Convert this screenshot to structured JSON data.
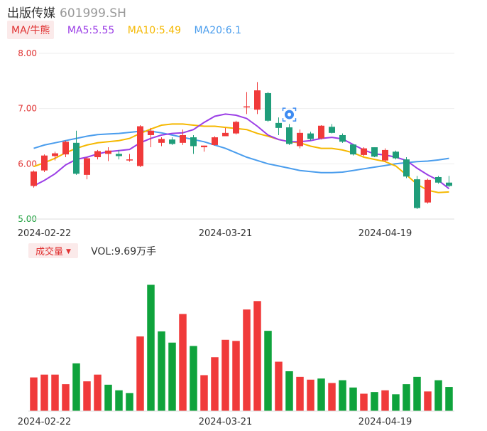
{
  "header": {
    "name": "出版传媒",
    "code": "601999.SH"
  },
  "ma_legend": {
    "button": "MA/牛熊",
    "items": [
      {
        "label": "MA5:5.55",
        "color": "#9b3ee6"
      },
      {
        "label": "MA10:5.49",
        "color": "#f5b800"
      },
      {
        "label": "MA20:6.1",
        "color": "#4a9ded"
      }
    ]
  },
  "volume_legend": {
    "button": "成交量",
    "value": "VOL:9.69万手"
  },
  "colors": {
    "up": "#f03a3a",
    "down": "#0fa33c",
    "down_candle": "#1f9d7a"
  },
  "chart_data": [
    {
      "type": "candlestick",
      "y_ticks": [
        "8.00",
        "7.00",
        "6.00",
        "5.00"
      ],
      "ylim": [
        5.0,
        8.0
      ],
      "x_ticks": [
        {
          "label": "2024-02-22",
          "index": 1
        },
        {
          "label": "2024-03-21",
          "index": 18
        },
        {
          "label": "2024-04-19",
          "index": 33
        }
      ],
      "candles": [
        {
          "o": 5.6,
          "h": 5.88,
          "l": 5.57,
          "c": 5.86
        },
        {
          "o": 5.88,
          "h": 6.17,
          "l": 5.85,
          "c": 6.15
        },
        {
          "o": 6.14,
          "h": 6.22,
          "l": 6.06,
          "c": 6.19
        },
        {
          "o": 6.17,
          "h": 6.42,
          "l": 6.12,
          "c": 6.4
        },
        {
          "o": 6.38,
          "h": 6.6,
          "l": 5.8,
          "c": 5.82
        },
        {
          "o": 5.8,
          "h": 6.12,
          "l": 5.72,
          "c": 6.1
        },
        {
          "o": 6.12,
          "h": 6.25,
          "l": 6.08,
          "c": 6.23
        },
        {
          "o": 6.18,
          "h": 6.3,
          "l": 6.05,
          "c": 6.24
        },
        {
          "o": 6.18,
          "h": 6.25,
          "l": 6.08,
          "c": 6.14
        },
        {
          "o": 6.06,
          "h": 6.18,
          "l": 6.04,
          "c": 6.08
        },
        {
          "o": 5.96,
          "h": 6.7,
          "l": 5.94,
          "c": 6.68
        },
        {
          "o": 6.52,
          "h": 6.65,
          "l": 6.3,
          "c": 6.6
        },
        {
          "o": 6.38,
          "h": 6.48,
          "l": 6.32,
          "c": 6.45
        },
        {
          "o": 6.44,
          "h": 6.48,
          "l": 6.34,
          "c": 6.36
        },
        {
          "o": 6.38,
          "h": 6.62,
          "l": 6.34,
          "c": 6.52
        },
        {
          "o": 6.48,
          "h": 6.52,
          "l": 6.18,
          "c": 6.32
        },
        {
          "o": 6.3,
          "h": 6.33,
          "l": 6.22,
          "c": 6.33
        },
        {
          "o": 6.34,
          "h": 6.5,
          "l": 6.33,
          "c": 6.48
        },
        {
          "o": 6.5,
          "h": 6.65,
          "l": 6.5,
          "c": 6.56
        },
        {
          "o": 6.55,
          "h": 6.78,
          "l": 6.53,
          "c": 6.76
        },
        {
          "o": 7.04,
          "h": 7.3,
          "l": 6.9,
          "c": 7.04
        },
        {
          "o": 6.98,
          "h": 7.48,
          "l": 6.9,
          "c": 7.33
        },
        {
          "o": 7.28,
          "h": 7.3,
          "l": 6.76,
          "c": 6.78
        },
        {
          "o": 6.74,
          "h": 6.84,
          "l": 6.52,
          "c": 6.65
        },
        {
          "o": 6.66,
          "h": 6.72,
          "l": 6.34,
          "c": 6.36
        },
        {
          "o": 6.32,
          "h": 6.62,
          "l": 6.28,
          "c": 6.56
        },
        {
          "o": 6.55,
          "h": 6.58,
          "l": 6.42,
          "c": 6.45
        },
        {
          "o": 6.46,
          "h": 6.7,
          "l": 6.44,
          "c": 6.69
        },
        {
          "o": 6.67,
          "h": 6.72,
          "l": 6.55,
          "c": 6.56
        },
        {
          "o": 6.52,
          "h": 6.55,
          "l": 6.38,
          "c": 6.4
        },
        {
          "o": 6.35,
          "h": 6.36,
          "l": 6.15,
          "c": 6.17
        },
        {
          "o": 6.16,
          "h": 6.3,
          "l": 6.14,
          "c": 6.28
        },
        {
          "o": 6.3,
          "h": 6.3,
          "l": 6.12,
          "c": 6.13
        },
        {
          "o": 6.06,
          "h": 6.28,
          "l": 6.03,
          "c": 6.25
        },
        {
          "o": 6.22,
          "h": 6.24,
          "l": 6.08,
          "c": 6.1
        },
        {
          "o": 6.08,
          "h": 6.12,
          "l": 5.74,
          "c": 5.77
        },
        {
          "o": 5.72,
          "h": 5.78,
          "l": 5.18,
          "c": 5.2
        },
        {
          "o": 5.3,
          "h": 5.73,
          "l": 5.28,
          "c": 5.71
        },
        {
          "o": 5.76,
          "h": 5.78,
          "l": 5.64,
          "c": 5.66
        },
        {
          "o": 5.66,
          "h": 5.78,
          "l": 5.58,
          "c": 5.6
        }
      ],
      "ma5": [
        5.6,
        5.7,
        5.82,
        5.98,
        6.08,
        6.12,
        6.18,
        6.22,
        6.24,
        6.26,
        6.38,
        6.46,
        6.52,
        6.55,
        6.56,
        6.62,
        6.75,
        6.86,
        6.9,
        6.88,
        6.82,
        6.68,
        6.52,
        6.44,
        6.4,
        6.4,
        6.42,
        6.46,
        6.48,
        6.45,
        6.35,
        6.25,
        6.18,
        6.16,
        6.12,
        6.06,
        5.92,
        5.8,
        5.7,
        5.55
      ],
      "ma10": [
        5.95,
        6.02,
        6.1,
        6.2,
        6.28,
        6.34,
        6.38,
        6.4,
        6.42,
        6.46,
        6.55,
        6.63,
        6.7,
        6.72,
        6.72,
        6.7,
        6.68,
        6.68,
        6.66,
        6.64,
        6.62,
        6.55,
        6.5,
        6.44,
        6.4,
        6.38,
        6.32,
        6.28,
        6.28,
        6.25,
        6.2,
        6.12,
        6.08,
        6.04,
        5.96,
        5.8,
        5.63,
        5.52,
        5.48,
        5.49
      ],
      "ma20": [
        6.28,
        6.34,
        6.38,
        6.42,
        6.46,
        6.5,
        6.53,
        6.54,
        6.55,
        6.57,
        6.59,
        6.59,
        6.56,
        6.52,
        6.48,
        6.44,
        6.4,
        6.34,
        6.28,
        6.2,
        6.12,
        6.06,
        6.0,
        5.96,
        5.92,
        5.88,
        5.86,
        5.84,
        5.84,
        5.85,
        5.88,
        5.91,
        5.94,
        5.97,
        6.0,
        6.02,
        6.04,
        6.05,
        6.07,
        6.1
      ],
      "marker_index": 24
    },
    {
      "type": "bar",
      "title": "成交量",
      "values": [
        6.0,
        6.5,
        6.5,
        4.8,
        8.5,
        5.3,
        6.5,
        4.7,
        3.7,
        3.2,
        13.3,
        22.5,
        14.2,
        12.2,
        17.3,
        11.6,
        6.4,
        9.6,
        12.7,
        12.5,
        18.1,
        19.6,
        14.3,
        8.8,
        7.1,
        6.1,
        5.6,
        5.8,
        5.0,
        5.5,
        4.2,
        3.1,
        3.4,
        3.7,
        3.0,
        4.8,
        6.1,
        3.5,
        5.5,
        4.3
      ],
      "colors": [
        "up",
        "up",
        "up",
        "up",
        "down",
        "up",
        "up",
        "down",
        "down",
        "down",
        "up",
        "down",
        "down",
        "down",
        "up",
        "down",
        "up",
        "up",
        "up",
        "up",
        "up",
        "up",
        "down",
        "up",
        "down",
        "up",
        "up",
        "down",
        "up",
        "down",
        "down",
        "up",
        "down",
        "up",
        "down",
        "down",
        "down",
        "up",
        "down",
        "down"
      ]
    }
  ]
}
